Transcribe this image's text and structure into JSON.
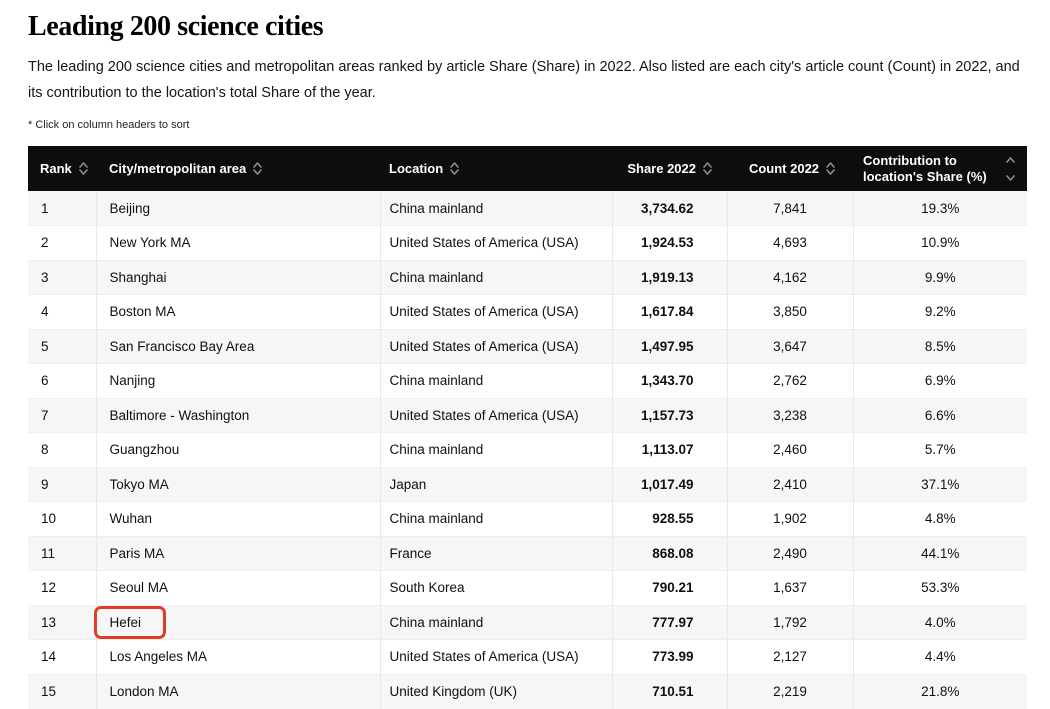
{
  "page": {
    "title": "Leading 200 science cities",
    "description": "The leading 200 science cities and metropolitan areas ranked by article Share (Share) in 2022. Also listed are each city's article count (Count) in 2022, and its contribution to the location's total Share of the year.",
    "sort_note": "* Click on column headers to sort"
  },
  "table": {
    "columns": [
      {
        "id": "rank",
        "label": "Rank",
        "sortable": true
      },
      {
        "id": "city",
        "label": "City/metropolitan area",
        "sortable": true
      },
      {
        "id": "location",
        "label": "Location",
        "sortable": true
      },
      {
        "id": "share",
        "label": "Share 2022",
        "sortable": true
      },
      {
        "id": "count",
        "label": "Count 2022",
        "sortable": true
      },
      {
        "id": "contribution",
        "label": "Contribution to location's Share (%)",
        "sortable": true
      }
    ],
    "rows": [
      {
        "rank": "1",
        "city": "Beijing",
        "location": "China mainland",
        "share": "3,734.62",
        "count": "7,841",
        "contribution": "19.3%",
        "highlighted": false
      },
      {
        "rank": "2",
        "city": "New York MA",
        "location": "United States of America (USA)",
        "share": "1,924.53",
        "count": "4,693",
        "contribution": "10.9%",
        "highlighted": false
      },
      {
        "rank": "3",
        "city": "Shanghai",
        "location": "China mainland",
        "share": "1,919.13",
        "count": "4,162",
        "contribution": "9.9%",
        "highlighted": false
      },
      {
        "rank": "4",
        "city": "Boston MA",
        "location": "United States of America (USA)",
        "share": "1,617.84",
        "count": "3,850",
        "contribution": "9.2%",
        "highlighted": false
      },
      {
        "rank": "5",
        "city": "San Francisco Bay Area",
        "location": "United States of America (USA)",
        "share": "1,497.95",
        "count": "3,647",
        "contribution": "8.5%",
        "highlighted": false
      },
      {
        "rank": "6",
        "city": "Nanjing",
        "location": "China mainland",
        "share": "1,343.70",
        "count": "2,762",
        "contribution": "6.9%",
        "highlighted": false
      },
      {
        "rank": "7",
        "city": "Baltimore - Washington",
        "location": "United States of America (USA)",
        "share": "1,157.73",
        "count": "3,238",
        "contribution": "6.6%",
        "highlighted": false
      },
      {
        "rank": "8",
        "city": "Guangzhou",
        "location": "China mainland",
        "share": "1,113.07",
        "count": "2,460",
        "contribution": "5.7%",
        "highlighted": false
      },
      {
        "rank": "9",
        "city": "Tokyo MA",
        "location": "Japan",
        "share": "1,017.49",
        "count": "2,410",
        "contribution": "37.1%",
        "highlighted": false
      },
      {
        "rank": "10",
        "city": "Wuhan",
        "location": "China mainland",
        "share": "928.55",
        "count": "1,902",
        "contribution": "4.8%",
        "highlighted": false
      },
      {
        "rank": "11",
        "city": "Paris MA",
        "location": "France",
        "share": "868.08",
        "count": "2,490",
        "contribution": "44.1%",
        "highlighted": false
      },
      {
        "rank": "12",
        "city": "Seoul MA",
        "location": "South Korea",
        "share": "790.21",
        "count": "1,637",
        "contribution": "53.3%",
        "highlighted": false
      },
      {
        "rank": "13",
        "city": "Hefei",
        "location": "China mainland",
        "share": "777.97",
        "count": "1,792",
        "contribution": "4.0%",
        "highlighted": true
      },
      {
        "rank": "14",
        "city": "Los Angeles MA",
        "location": "United States of America (USA)",
        "share": "773.99",
        "count": "2,127",
        "contribution": "4.4%",
        "highlighted": false
      },
      {
        "rank": "15",
        "city": "London MA",
        "location": "United Kingdom (UK)",
        "share": "710.51",
        "count": "2,219",
        "contribution": "21.8%",
        "highlighted": false
      }
    ]
  },
  "highlight": {
    "city": "Hefei",
    "row_rank": "13"
  },
  "colors": {
    "header_bg": "#0d0d0d",
    "header_text": "#ffffff",
    "row_bg": "#ffffff",
    "row_alt_bg": "#f6f6f6",
    "sort_icon": "#8e8e8e",
    "highlight_box": "#e23b27"
  }
}
